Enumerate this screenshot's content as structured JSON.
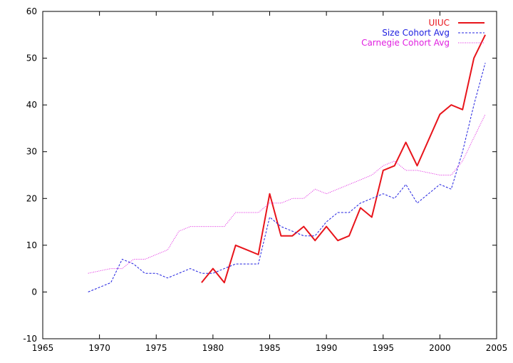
{
  "chart_data": {
    "type": "line",
    "title": "",
    "xlabel": "",
    "ylabel": "",
    "xlim": [
      1965,
      2005
    ],
    "ylim": [
      -10,
      60
    ],
    "xticks": [
      1965,
      1970,
      1975,
      1980,
      1985,
      1990,
      1995,
      2000,
      2005
    ],
    "yticks": [
      -10,
      0,
      10,
      20,
      30,
      40,
      50,
      60
    ],
    "grid": false,
    "legend_position": "top-right",
    "series": [
      {
        "name": "UIUC",
        "color": "#e8141b",
        "style": "solid",
        "x": [
          1979,
          1980,
          1981,
          1982,
          1983,
          1984,
          1985,
          1986,
          1987,
          1988,
          1989,
          1990,
          1991,
          1992,
          1993,
          1994,
          1995,
          1996,
          1997,
          1998,
          2000,
          2001,
          2002,
          2003,
          2004
        ],
        "y": [
          2,
          5,
          2,
          10,
          9,
          8,
          21,
          12,
          12,
          14,
          11,
          14,
          11,
          12,
          18,
          16,
          26,
          27,
          32,
          27,
          38,
          40,
          39,
          50,
          55
        ]
      },
      {
        "name": "Size Cohort Avg",
        "color": "#2020e0",
        "style": "dashed",
        "x": [
          1969,
          1970,
          1971,
          1972,
          1973,
          1974,
          1975,
          1976,
          1977,
          1978,
          1979,
          1980,
          1981,
          1982,
          1983,
          1984,
          1985,
          1986,
          1987,
          1988,
          1989,
          1990,
          1991,
          1992,
          1993,
          1994,
          1995,
          1996,
          1997,
          1998,
          1999,
          2000,
          2001,
          2002,
          2003,
          2004
        ],
        "y": [
          0,
          1,
          2,
          7,
          6,
          4,
          4,
          3,
          4,
          5,
          4,
          4,
          5,
          6,
          6,
          6,
          16,
          14,
          13,
          12,
          12,
          15,
          17,
          17,
          19,
          20,
          21,
          20,
          23,
          19,
          21,
          23,
          22,
          30,
          40,
          49
        ]
      },
      {
        "name": "Carnegie Cohort Avg",
        "color": "#e020e0",
        "style": "dotted",
        "x": [
          1969,
          1970,
          1971,
          1972,
          1973,
          1974,
          1975,
          1976,
          1977,
          1978,
          1979,
          1980,
          1981,
          1982,
          1983,
          1984,
          1985,
          1986,
          1987,
          1988,
          1989,
          1990,
          1991,
          1992,
          1993,
          1994,
          1995,
          1996,
          1997,
          1998,
          1999,
          2000,
          2001,
          2002,
          2003,
          2004
        ],
        "y": [
          4,
          4.5,
          5,
          5,
          7,
          7,
          8,
          9,
          13,
          14,
          14,
          14,
          14,
          17,
          17,
          17,
          19,
          19,
          20,
          20,
          22,
          21,
          22,
          23,
          24,
          25,
          27,
          28,
          26,
          26,
          25.5,
          25,
          25,
          28,
          33,
          38
        ]
      }
    ]
  }
}
